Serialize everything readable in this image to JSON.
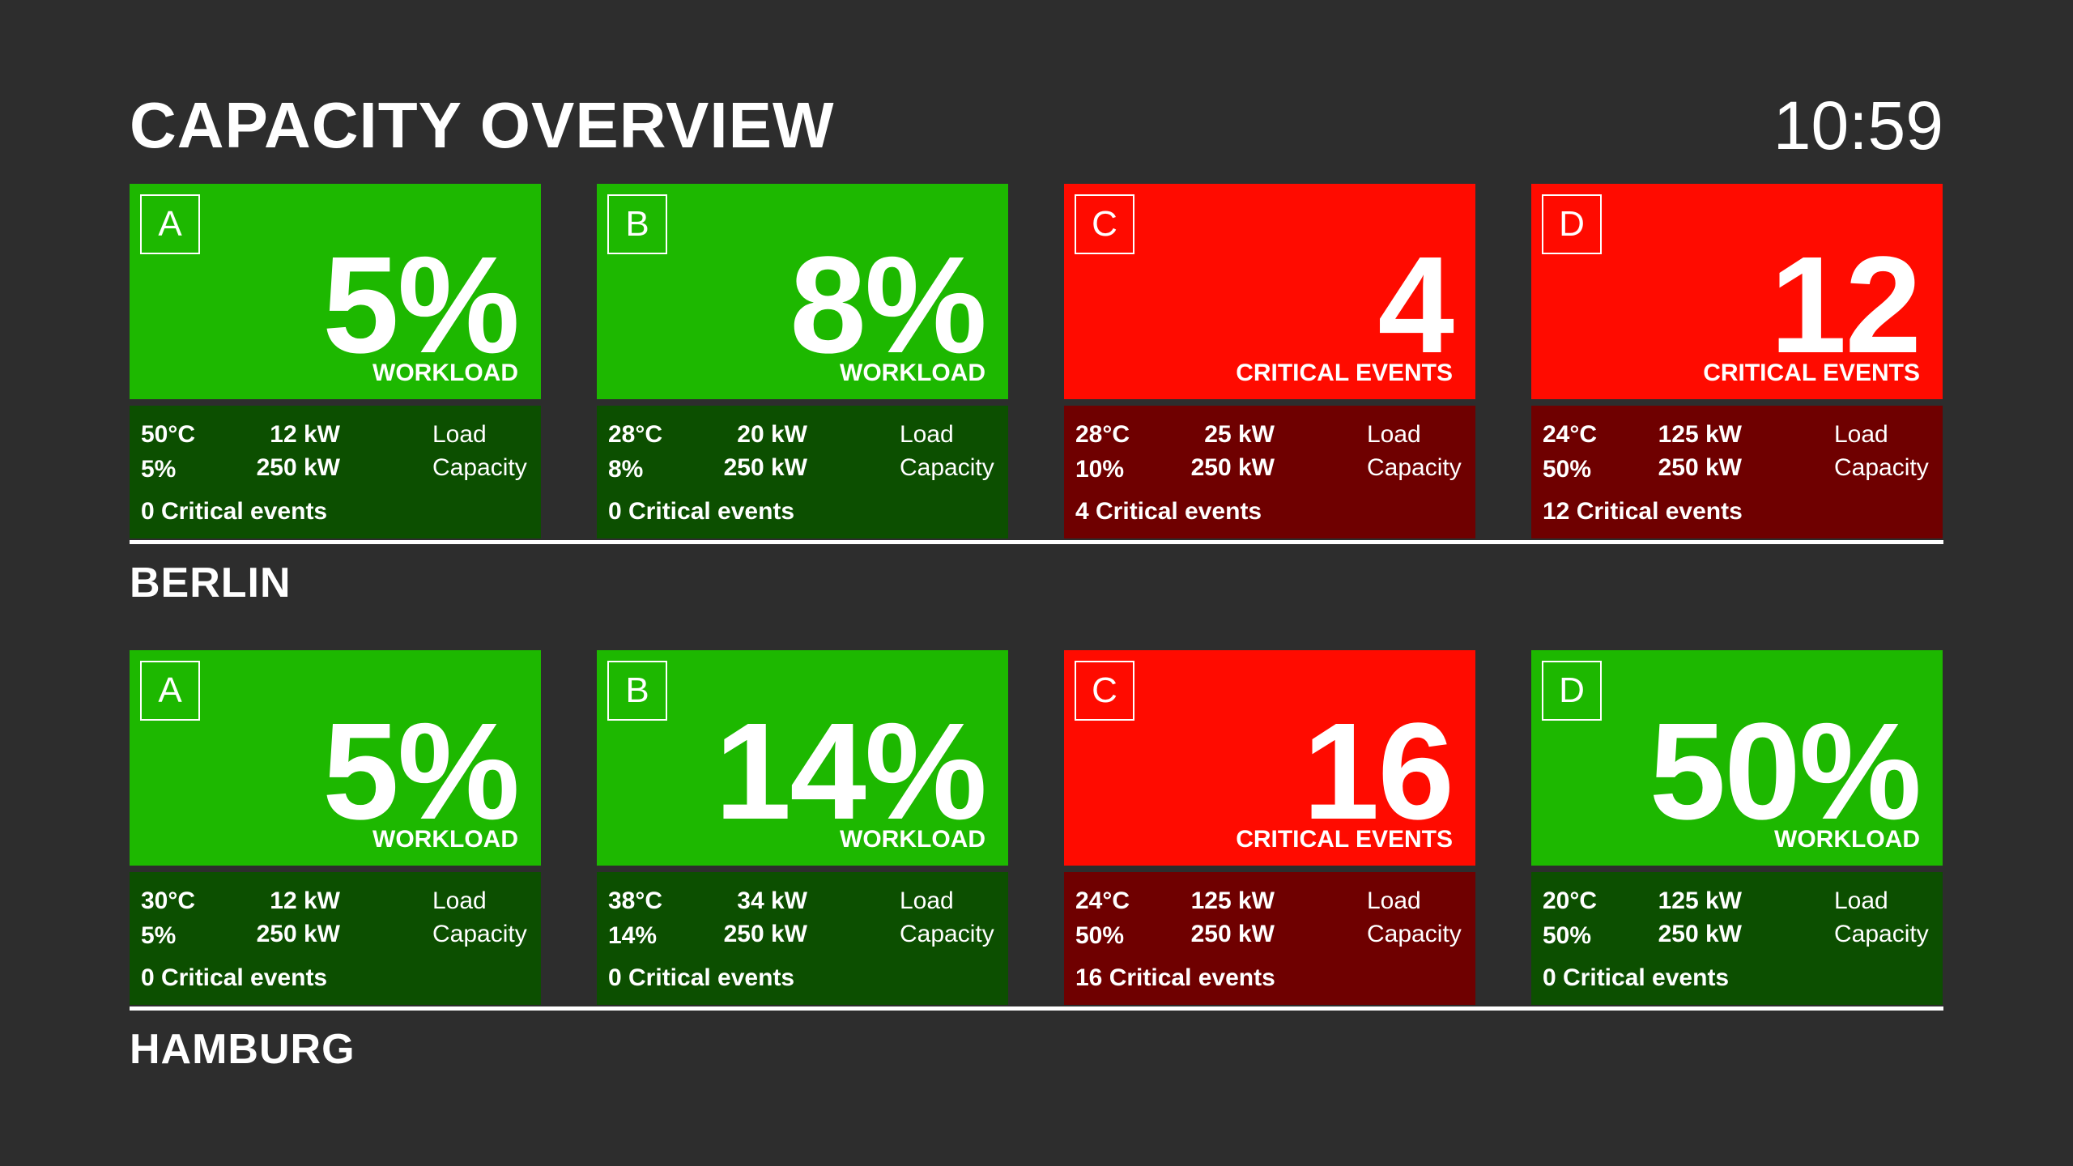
{
  "header": {
    "title": "CAPACITY OVERVIEW",
    "clock": "10:59"
  },
  "colors": {
    "background": "#2d2d2d",
    "ok_top": "#1db800",
    "ok_bottom": "#0c4f00",
    "critical_top": "#ff0b00",
    "critical_bottom": "#6f0000",
    "text": "#ffffff"
  },
  "sites": [
    {
      "name": "BERLIN",
      "halls": [
        {
          "hall": "A",
          "status": "ok",
          "big_value": "5%",
          "big_label": "WORKLOAD",
          "temp": "50°C",
          "percent": "5%",
          "load_value": "12 kW",
          "load_label": "Load",
          "capacity_value": "250 kW",
          "capacity_label": "Capacity",
          "events": "0 Critical events"
        },
        {
          "hall": "B",
          "status": "ok",
          "big_value": "8%",
          "big_label": "WORKLOAD",
          "temp": "28°C",
          "percent": "8%",
          "load_value": "20 kW",
          "load_label": "Load",
          "capacity_value": "250 kW",
          "capacity_label": "Capacity",
          "events": "0 Critical events"
        },
        {
          "hall": "C",
          "status": "critical",
          "big_value": "4",
          "big_label": "CRITICAL EVENTS",
          "temp": "28°C",
          "percent": "10%",
          "load_value": "25 kW",
          "load_label": "Load",
          "capacity_value": "250 kW",
          "capacity_label": "Capacity",
          "events": "4 Critical events"
        },
        {
          "hall": "D",
          "status": "critical",
          "big_value": "12",
          "big_label": "CRITICAL EVENTS",
          "temp": "24°C",
          "percent": "50%",
          "load_value": "125 kW",
          "load_label": "Load",
          "capacity_value": "250 kW",
          "capacity_label": "Capacity",
          "events": "12 Critical events"
        }
      ]
    },
    {
      "name": "HAMBURG",
      "halls": [
        {
          "hall": "A",
          "status": "ok",
          "big_value": "5%",
          "big_label": "WORKLOAD",
          "temp": "30°C",
          "percent": "5%",
          "load_value": "12 kW",
          "load_label": "Load",
          "capacity_value": "250 kW",
          "capacity_label": "Capacity",
          "events": "0 Critical events"
        },
        {
          "hall": "B",
          "status": "ok",
          "big_value": "14%",
          "big_label": "WORKLOAD",
          "temp": "38°C",
          "percent": "14%",
          "load_value": "34 kW",
          "load_label": "Load",
          "capacity_value": "250 kW",
          "capacity_label": "Capacity",
          "events": "0 Critical events"
        },
        {
          "hall": "C",
          "status": "critical",
          "big_value": "16",
          "big_label": "CRITICAL EVENTS",
          "temp": "24°C",
          "percent": "50%",
          "load_value": "125 kW",
          "load_label": "Load",
          "capacity_value": "250 kW",
          "capacity_label": "Capacity",
          "events": "16 Critical events"
        },
        {
          "hall": "D",
          "status": "ok",
          "big_value": "50%",
          "big_label": "WORKLOAD",
          "temp": "20°C",
          "percent": "50%",
          "load_value": "125 kW",
          "load_label": "Load",
          "capacity_value": "250 kW",
          "capacity_label": "Capacity",
          "events": "0 Critical events"
        }
      ]
    }
  ]
}
